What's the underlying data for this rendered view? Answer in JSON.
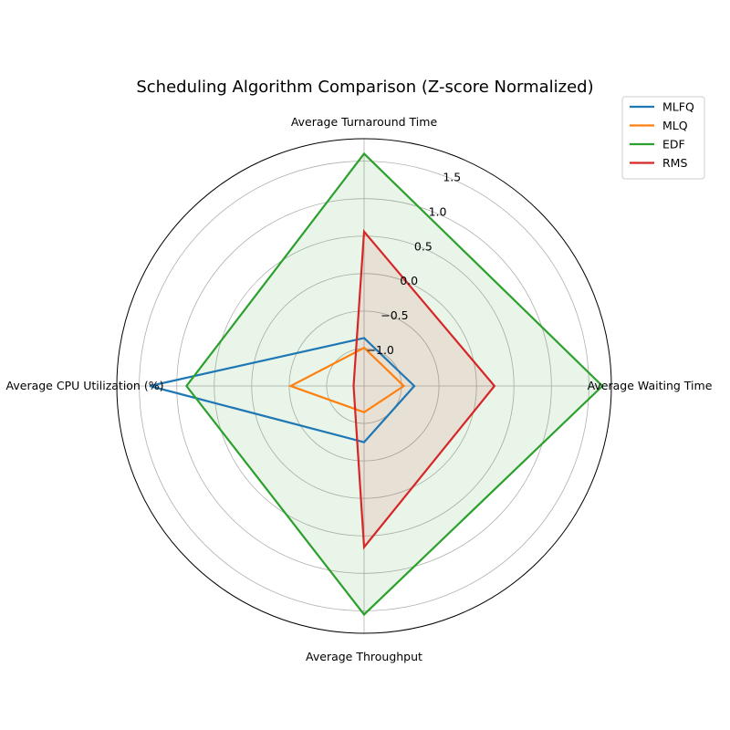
{
  "chart_data": {
    "type": "radar",
    "title": "Scheduling Algorithm Comparison (Z-score Normalized)",
    "axes": [
      "Average Turnaround Time",
      "Average Waiting Time",
      "Average Throughput",
      "Average CPU Utilization (%)"
    ],
    "r_ticks": [
      -1.0,
      -0.5,
      0.0,
      0.5,
      1.0,
      1.5
    ],
    "r_tick_labels": [
      "−1.0",
      "−0.5",
      "0.0",
      "0.5",
      "1.0",
      "1.5"
    ],
    "rlim": [
      -1.5,
      1.8
    ],
    "grid": true,
    "legend_position": "upper-right",
    "series": [
      {
        "name": "MLFQ",
        "color": "#1f77b4",
        "fill": false,
        "values": [
          -0.86,
          -0.83,
          -0.75,
          1.36
        ]
      },
      {
        "name": "MLQ",
        "color": "#ff7f0e",
        "fill": false,
        "values": [
          -0.99,
          -0.97,
          -1.15,
          -0.52
        ]
      },
      {
        "name": "EDF",
        "color": "#2ca02c",
        "fill": true,
        "values": [
          1.6,
          1.68,
          1.55,
          0.87
        ]
      },
      {
        "name": "RMS",
        "color": "#d62728",
        "fill": true,
        "values": [
          0.56,
          0.24,
          0.65,
          -1.36
        ]
      }
    ]
  }
}
